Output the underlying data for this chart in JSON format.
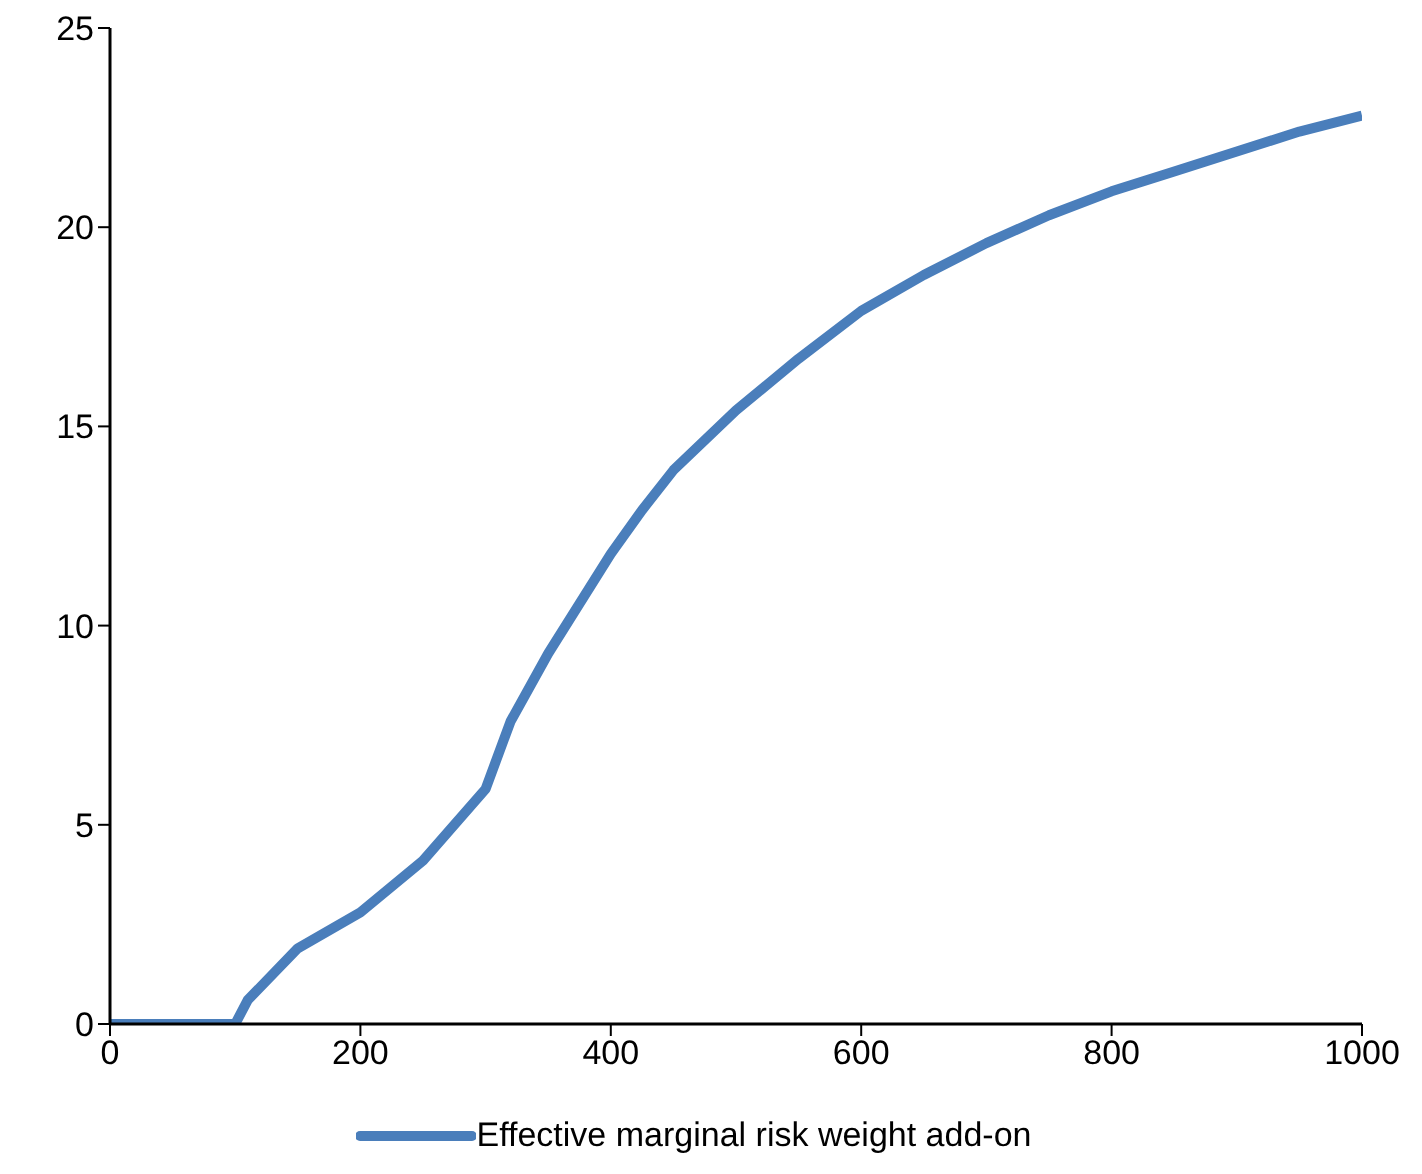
{
  "chart_data": {
    "type": "line",
    "x": [
      0,
      100,
      110,
      150,
      200,
      250,
      300,
      320,
      350,
      400,
      425,
      450,
      500,
      550,
      600,
      650,
      700,
      750,
      800,
      850,
      900,
      950,
      1000
    ],
    "series": [
      {
        "name": "Effective marginal risk weight add-on",
        "color": "#4a7ebb",
        "values": [
          0,
          0,
          0.6,
          1.9,
          2.8,
          4.1,
          5.9,
          7.6,
          9.3,
          11.8,
          12.9,
          13.9,
          15.4,
          16.7,
          17.9,
          18.8,
          19.6,
          20.3,
          20.9,
          21.4,
          21.9,
          22.4,
          22.8
        ]
      }
    ],
    "xlim": [
      0,
      1000
    ],
    "xticks": [
      0,
      200,
      400,
      600,
      800,
      1000
    ],
    "ylim": [
      0,
      25
    ],
    "yticks": [
      0,
      5,
      10,
      15,
      20,
      25
    ],
    "grid": false,
    "legend": "bottom",
    "marker": "none",
    "line_style": "solid"
  }
}
